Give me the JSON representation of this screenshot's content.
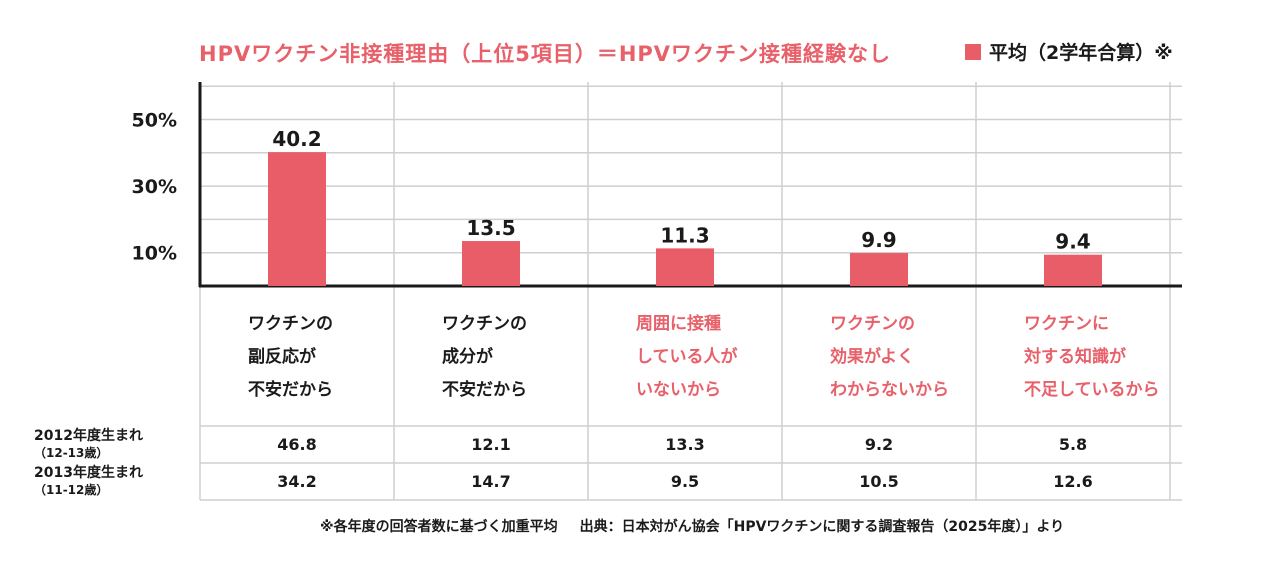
{
  "colors": {
    "bar": "#e85d67",
    "accent_text": "#e8606a",
    "grid": "#cfcfcf",
    "axis": "#1a1a1a"
  },
  "chart_data": {
    "type": "bar",
    "title": "HPVワクチン非接種理由（上位5項目）＝HPVワクチン接種経験なし",
    "legend": "平均（2学年合算）※",
    "legend_position": "top-right",
    "grid": true,
    "ylim": [
      0,
      60
    ],
    "yticks": [
      {
        "value": 10,
        "label": "10%"
      },
      {
        "value": 30,
        "label": "30%"
      },
      {
        "value": 50,
        "label": "50%"
      }
    ],
    "categories": [
      {
        "lines": [
          "ワクチンの",
          "副反応が",
          "不安だから"
        ],
        "highlight": false
      },
      {
        "lines": [
          "ワクチンの",
          "成分が",
          "不安だから"
        ],
        "highlight": false
      },
      {
        "lines": [
          "周囲に接種",
          "している人が",
          "いないから"
        ],
        "highlight": true
      },
      {
        "lines": [
          "ワクチンの",
          "効果がよく",
          "わからないから"
        ],
        "highlight": true
      },
      {
        "lines": [
          "ワクチンに",
          "対する知識が",
          "不足しているから"
        ],
        "highlight": true
      }
    ],
    "values": [
      40.2,
      13.5,
      11.3,
      9.9,
      9.4
    ],
    "value_labels": [
      "40.2",
      "13.5",
      "11.3",
      "9.9",
      "9.4"
    ],
    "table": {
      "rows": [
        {
          "label": "2012年度生まれ",
          "sublabel": "（12-13歳）",
          "values": [
            "46.8",
            "12.1",
            "13.3",
            "9.2",
            "5.8"
          ]
        },
        {
          "label": "2013年度生まれ",
          "sublabel": "（11-12歳）",
          "values": [
            "34.2",
            "14.7",
            "9.5",
            "10.5",
            "12.6"
          ]
        }
      ]
    }
  },
  "footnote": {
    "note": "※各年度の回答者数に基づく加重平均",
    "source": "出典：日本対がん協会「HPVワクチンに関する調査報告（2025年度）」より"
  }
}
